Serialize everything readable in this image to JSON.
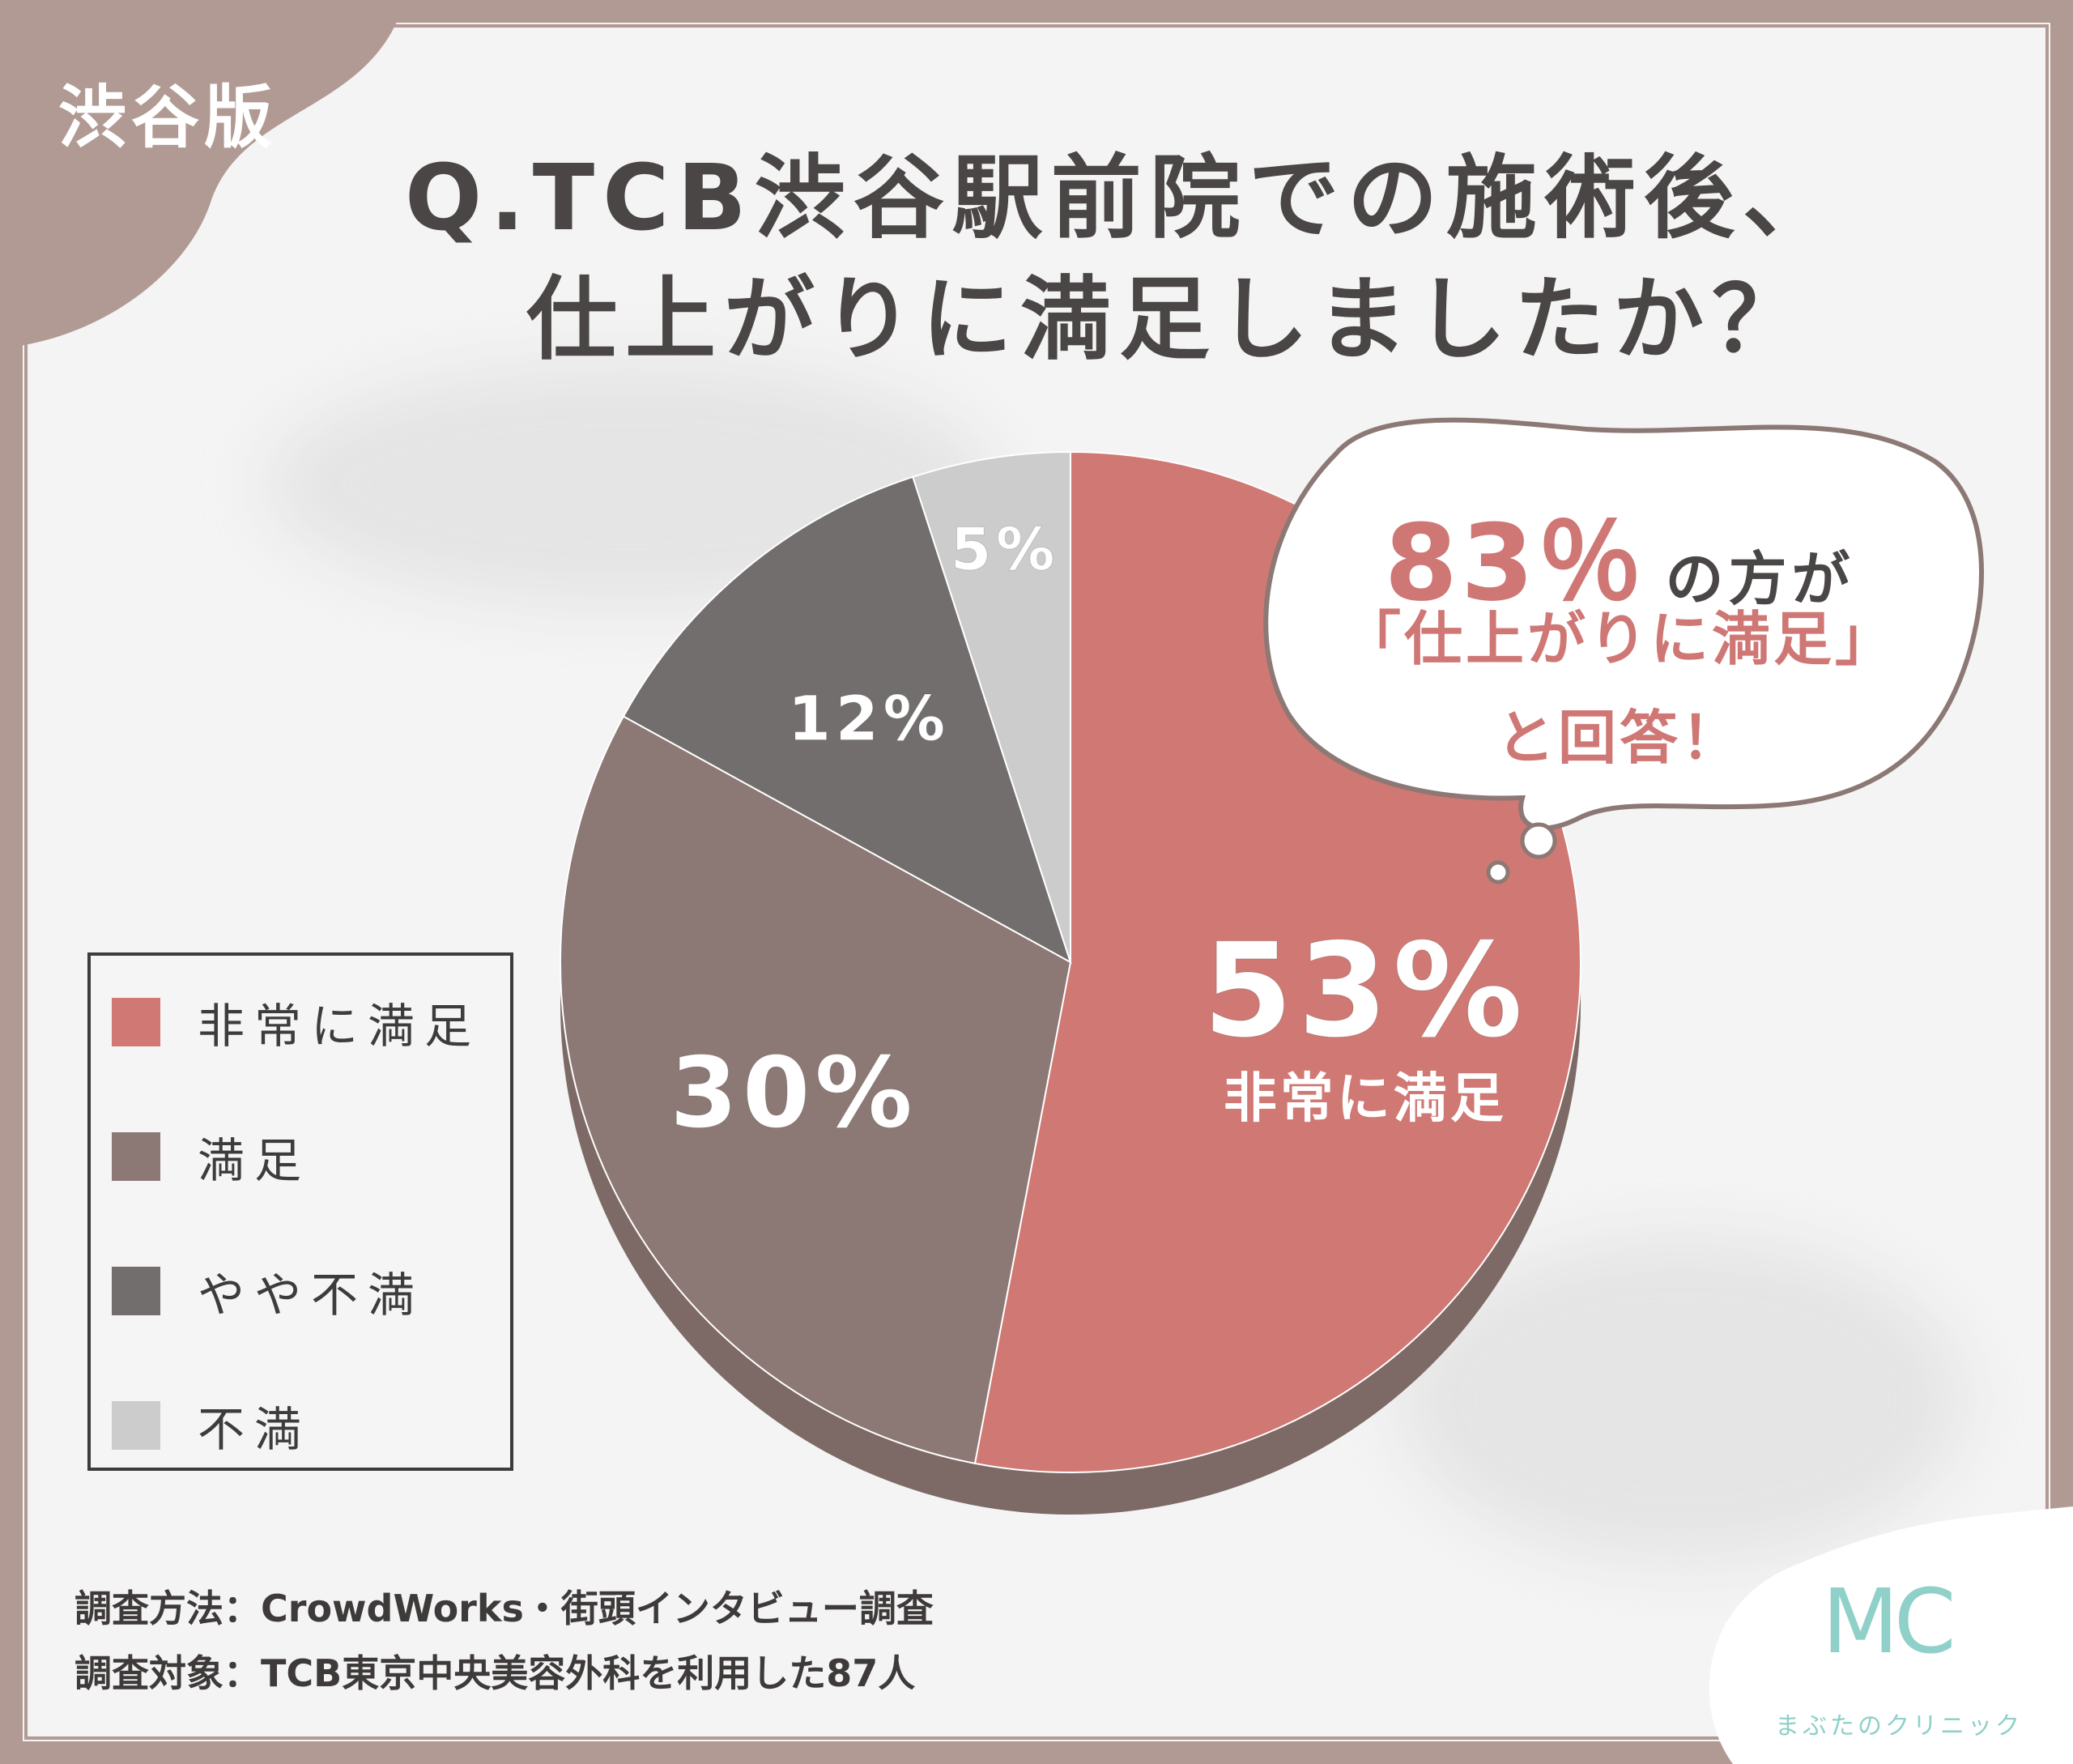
{
  "badge": "渋谷版",
  "title": {
    "line1": "Q.TCB渋谷駅前院での施術後、",
    "line2": "仕上がりに満足しましたか？"
  },
  "callout": {
    "percent": "83％",
    "suffix": "の方が",
    "line2": "「仕上がりに満足」",
    "line3": "と回答！"
  },
  "chart_data": {
    "type": "pie",
    "categories": [
      "非常に満足",
      "満足",
      "やや不満",
      "不満"
    ],
    "values": [
      53,
      30,
      12,
      5
    ],
    "labels": [
      "53%",
      "30%",
      "12%",
      "5%"
    ],
    "highlight_sublabel": "非常に満足",
    "colors": [
      "#d07873",
      "#8c7874",
      "#736e6e",
      "#cccccc"
    ],
    "legend_position": "left"
  },
  "legend": [
    {
      "label": "非常に満足",
      "color": "#d07873"
    },
    {
      "label": "満足",
      "color": "#8c7874"
    },
    {
      "label": "やや不満",
      "color": "#736e6e"
    },
    {
      "label": "不満",
      "color": "#cccccc"
    }
  ],
  "footer": {
    "method": "調査方法：CrowdWorks・街頭インタビュー調査",
    "target": "調査対象：TCB東京中央美容外科を利用した87人"
  },
  "logo": {
    "mark": "MC",
    "name": "まぶたのクリニック"
  },
  "colors": {
    "frame": "#b19a93",
    "accent": "#cf7774",
    "text": "#4b4646"
  }
}
